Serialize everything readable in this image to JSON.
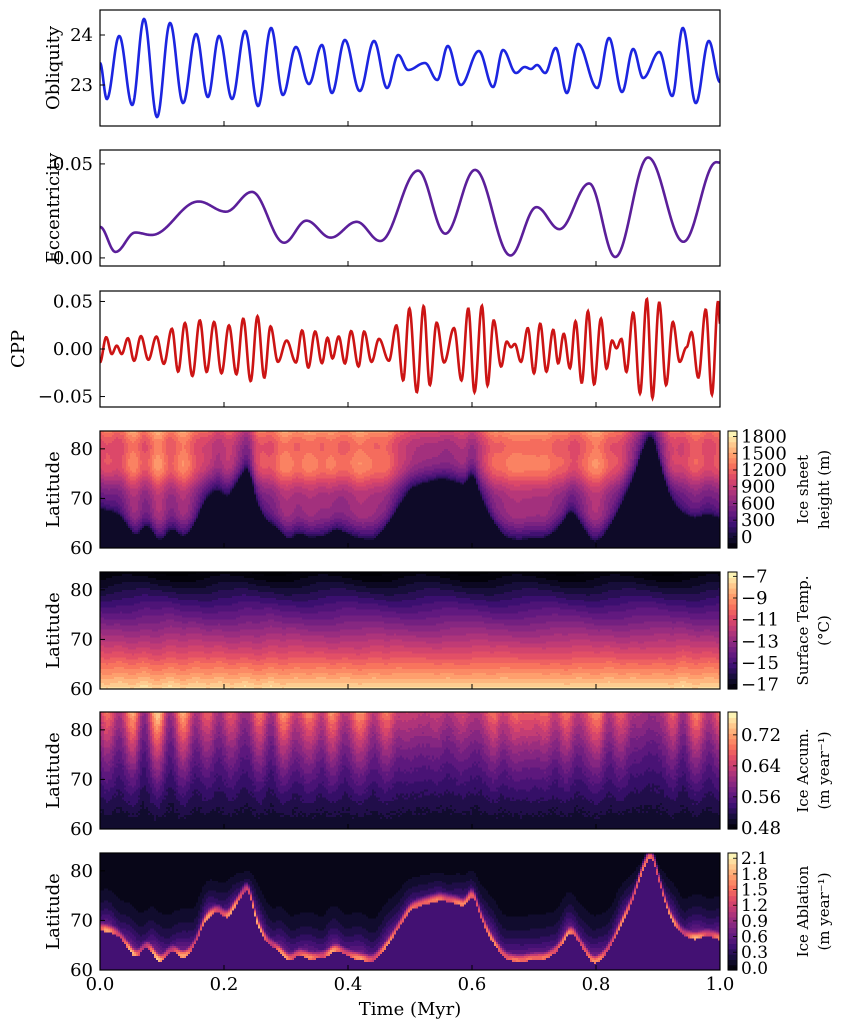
{
  "x_axis": {
    "label": "Time (Myr)",
    "ticks": [
      "0.0",
      "0.2",
      "0.4",
      "0.6",
      "0.8",
      "1.0"
    ],
    "tick_values": [
      0,
      0.2,
      0.4,
      0.6,
      0.8,
      1.0
    ],
    "xlim": [
      0,
      1
    ]
  },
  "chart_data": [
    {
      "type": "line",
      "ylabel": "Obliquity",
      "color": "#1c25e0",
      "ylim": [
        22.18,
        24.5
      ],
      "yticks": [
        "24",
        "23"
      ],
      "ytick_values": [
        24,
        23
      ],
      "extrema": [
        [
          0.0,
          23.44
        ],
        [
          0.011,
          22.72
        ],
        [
          0.031,
          23.98
        ],
        [
          0.052,
          22.6
        ],
        [
          0.071,
          24.32
        ],
        [
          0.092,
          22.36
        ],
        [
          0.113,
          24.24
        ],
        [
          0.134,
          22.64
        ],
        [
          0.155,
          24.02
        ],
        [
          0.174,
          22.76
        ],
        [
          0.192,
          23.98
        ],
        [
          0.213,
          22.72
        ],
        [
          0.234,
          24.08
        ],
        [
          0.255,
          22.58
        ],
        [
          0.276,
          24.14
        ],
        [
          0.295,
          22.8
        ],
        [
          0.316,
          23.76
        ],
        [
          0.337,
          23.02
        ],
        [
          0.358,
          23.8
        ],
        [
          0.374,
          22.84
        ],
        [
          0.395,
          23.9
        ],
        [
          0.419,
          22.88
        ],
        [
          0.442,
          23.88
        ],
        [
          0.463,
          22.94
        ],
        [
          0.481,
          23.6
        ],
        [
          0.497,
          23.3
        ],
        [
          0.524,
          23.44
        ],
        [
          0.544,
          23.1
        ],
        [
          0.561,
          23.78
        ],
        [
          0.582,
          23.0
        ],
        [
          0.611,
          23.68
        ],
        [
          0.634,
          22.96
        ],
        [
          0.65,
          23.7
        ],
        [
          0.671,
          23.24
        ],
        [
          0.685,
          23.36
        ],
        [
          0.695,
          23.32
        ],
        [
          0.705,
          23.4
        ],
        [
          0.718,
          23.24
        ],
        [
          0.735,
          23.74
        ],
        [
          0.753,
          22.84
        ],
        [
          0.771,
          23.82
        ],
        [
          0.802,
          22.94
        ],
        [
          0.821,
          23.94
        ],
        [
          0.842,
          22.86
        ],
        [
          0.86,
          23.72
        ],
        [
          0.876,
          23.14
        ],
        [
          0.902,
          23.66
        ],
        [
          0.923,
          22.78
        ],
        [
          0.94,
          24.14
        ],
        [
          0.961,
          22.64
        ],
        [
          0.982,
          23.88
        ],
        [
          1.0,
          23.06
        ]
      ]
    },
    {
      "type": "line",
      "ylabel": "Eccentricity",
      "color": "#5b1f9a",
      "ylim": [
        -0.0043,
        0.0574
      ],
      "yticks": [
        "0.05",
        "0.00"
      ],
      "ytick_values": [
        0.05,
        0.0
      ],
      "extrema": [
        [
          0.0,
          0.0165
        ],
        [
          0.025,
          0.0032
        ],
        [
          0.057,
          0.0135
        ],
        [
          0.083,
          0.0122
        ],
        [
          0.159,
          0.03
        ],
        [
          0.203,
          0.0246
        ],
        [
          0.245,
          0.0351
        ],
        [
          0.297,
          0.0081
        ],
        [
          0.333,
          0.0198
        ],
        [
          0.372,
          0.0108
        ],
        [
          0.414,
          0.0192
        ],
        [
          0.452,
          0.009
        ],
        [
          0.513,
          0.0464
        ],
        [
          0.557,
          0.0129
        ],
        [
          0.605,
          0.0468
        ],
        [
          0.662,
          0.0013
        ],
        [
          0.704,
          0.027
        ],
        [
          0.741,
          0.0153
        ],
        [
          0.789,
          0.0396
        ],
        [
          0.831,
          0.0005
        ],
        [
          0.884,
          0.0534
        ],
        [
          0.941,
          0.0086
        ],
        [
          0.994,
          0.0509
        ],
        [
          1.0,
          0.0507
        ]
      ]
    },
    {
      "type": "line",
      "ylabel": "CPP",
      "color": "#cc1414",
      "ylim": [
        -0.061,
        0.061
      ],
      "yticks": [
        "0.05",
        "0.00",
        "−0.05"
      ],
      "ytick_values": [
        0.05,
        0.0,
        -0.05
      ],
      "extrema": [
        [
          0.0,
          -0.014
        ],
        [
          0.01,
          0.0124
        ],
        [
          0.019,
          -0.0053
        ],
        [
          0.027,
          0.0035
        ],
        [
          0.035,
          -0.0053
        ],
        [
          0.045,
          0.0113
        ],
        [
          0.055,
          -0.0124
        ],
        [
          0.066,
          0.0135
        ],
        [
          0.078,
          -0.0113
        ],
        [
          0.091,
          0.0131
        ],
        [
          0.103,
          -0.0156
        ],
        [
          0.116,
          0.0213
        ],
        [
          0.126,
          -0.0238
        ],
        [
          0.137,
          0.0273
        ],
        [
          0.149,
          -0.0284
        ],
        [
          0.161,
          0.0301
        ],
        [
          0.172,
          -0.0241
        ],
        [
          0.184,
          0.0284
        ],
        [
          0.196,
          -0.0255
        ],
        [
          0.208,
          0.0248
        ],
        [
          0.22,
          -0.0266
        ],
        [
          0.231,
          0.0319
        ],
        [
          0.243,
          -0.0337
        ],
        [
          0.254,
          0.0344
        ],
        [
          0.265,
          -0.0301
        ],
        [
          0.275,
          0.0238
        ],
        [
          0.287,
          -0.0135
        ],
        [
          0.301,
          0.0089
        ],
        [
          0.316,
          -0.0142
        ],
        [
          0.326,
          0.0195
        ],
        [
          0.336,
          -0.0195
        ],
        [
          0.347,
          0.0184
        ],
        [
          0.358,
          -0.0149
        ],
        [
          0.367,
          0.0117
        ],
        [
          0.375,
          -0.0099
        ],
        [
          0.385,
          0.0131
        ],
        [
          0.395,
          -0.0152
        ],
        [
          0.405,
          0.0188
        ],
        [
          0.417,
          -0.0184
        ],
        [
          0.426,
          0.0184
        ],
        [
          0.438,
          -0.0135
        ],
        [
          0.45,
          0.0106
        ],
        [
          0.466,
          -0.0124
        ],
        [
          0.478,
          0.0248
        ],
        [
          0.489,
          -0.033
        ],
        [
          0.499,
          0.0426
        ],
        [
          0.511,
          -0.0454
        ],
        [
          0.522,
          0.045
        ],
        [
          0.532,
          -0.0379
        ],
        [
          0.543,
          0.0277
        ],
        [
          0.555,
          -0.0142
        ],
        [
          0.571,
          0.022
        ],
        [
          0.583,
          -0.033
        ],
        [
          0.594,
          0.0426
        ],
        [
          0.604,
          -0.0454
        ],
        [
          0.616,
          0.0454
        ],
        [
          0.625,
          -0.0383
        ],
        [
          0.635,
          0.0301
        ],
        [
          0.647,
          -0.0184
        ],
        [
          0.656,
          0.0078
        ],
        [
          0.663,
          0.0018
        ],
        [
          0.669,
          0.0053
        ],
        [
          0.679,
          -0.0135
        ],
        [
          0.69,
          0.022
        ],
        [
          0.7,
          -0.0255
        ],
        [
          0.71,
          0.0266
        ],
        [
          0.72,
          -0.0238
        ],
        [
          0.731,
          0.0202
        ],
        [
          0.739,
          -0.0152
        ],
        [
          0.748,
          0.016
        ],
        [
          0.758,
          -0.0202
        ],
        [
          0.767,
          0.0291
        ],
        [
          0.777,
          -0.0355
        ],
        [
          0.787,
          0.0397
        ],
        [
          0.797,
          -0.0372
        ],
        [
          0.808,
          0.0319
        ],
        [
          0.817,
          -0.0206
        ],
        [
          0.826,
          0.0089
        ],
        [
          0.833,
          0.0007
        ],
        [
          0.841,
          0.0106
        ],
        [
          0.849,
          -0.0241
        ],
        [
          0.86,
          0.0383
        ],
        [
          0.871,
          -0.0468
        ],
        [
          0.882,
          0.0525
        ],
        [
          0.891,
          -0.0514
        ],
        [
          0.902,
          0.0489
        ],
        [
          0.913,
          -0.0379
        ],
        [
          0.924,
          0.0284
        ],
        [
          0.935,
          -0.0135
        ],
        [
          0.946,
          0.0018
        ],
        [
          0.954,
          0.0177
        ],
        [
          0.965,
          -0.0301
        ],
        [
          0.977,
          0.0415
        ],
        [
          0.987,
          -0.0479
        ],
        [
          0.997,
          0.0504
        ],
        [
          1.0,
          0.0266
        ]
      ]
    },
    {
      "type": "heatmap",
      "ylabel": "Latitude",
      "colormap": "magma",
      "ylim": [
        60,
        83.6
      ],
      "yticks": [
        "80",
        "70",
        "60"
      ],
      "ytick_values": [
        80,
        70,
        60
      ],
      "colorbar": {
        "label_lines": [
          "Ice sheet",
          "height (m)"
        ],
        "ticks": [
          "1800",
          "1500",
          "1200",
          "900",
          "600",
          "300",
          "0"
        ],
        "tick_values": [
          1800,
          1500,
          1200,
          900,
          600,
          300,
          0
        ],
        "range": [
          -200,
          1900
        ]
      },
      "ice_sheet_southern_extent": [
        [
          0,
          68
        ],
        [
          0.03,
          67
        ],
        [
          0.058,
          62
        ],
        [
          0.075,
          65
        ],
        [
          0.097,
          61
        ],
        [
          0.115,
          64
        ],
        [
          0.135,
          62
        ],
        [
          0.15,
          64
        ],
        [
          0.17,
          70
        ],
        [
          0.19,
          72
        ],
        [
          0.205,
          70
        ],
        [
          0.225,
          74
        ],
        [
          0.24,
          77
        ],
        [
          0.25,
          70
        ],
        [
          0.265,
          66
        ],
        [
          0.285,
          64
        ],
        [
          0.305,
          61.5
        ],
        [
          0.32,
          63
        ],
        [
          0.34,
          62
        ],
        [
          0.365,
          62.5
        ],
        [
          0.38,
          64
        ],
        [
          0.395,
          63
        ],
        [
          0.415,
          62
        ],
        [
          0.44,
          61.5
        ],
        [
          0.46,
          64
        ],
        [
          0.48,
          68
        ],
        [
          0.5,
          72
        ],
        [
          0.52,
          73
        ],
        [
          0.55,
          74
        ],
        [
          0.57,
          73.5
        ],
        [
          0.59,
          72.5
        ],
        [
          0.6,
          76
        ],
        [
          0.615,
          70
        ],
        [
          0.635,
          65
        ],
        [
          0.655,
          62
        ],
        [
          0.675,
          61.5
        ],
        [
          0.7,
          62
        ],
        [
          0.72,
          62
        ],
        [
          0.74,
          64
        ],
        [
          0.76,
          68
        ],
        [
          0.78,
          64
        ],
        [
          0.795,
          61
        ],
        [
          0.81,
          62
        ],
        [
          0.83,
          66
        ],
        [
          0.845,
          70
        ],
        [
          0.86,
          74
        ],
        [
          0.875,
          80
        ],
        [
          0.89,
          83.6
        ],
        [
          0.905,
          76
        ],
        [
          0.92,
          70
        ],
        [
          0.94,
          67
        ],
        [
          0.96,
          66
        ],
        [
          0.98,
          67
        ],
        [
          1.0,
          66
        ]
      ]
    },
    {
      "type": "heatmap",
      "ylabel": "Latitude",
      "colormap": "magma",
      "ylim": [
        60,
        83.6
      ],
      "yticks": [
        "80",
        "70",
        "60"
      ],
      "ytick_values": [
        80,
        70,
        60
      ],
      "colorbar": {
        "label_lines": [
          "Surface Temp.",
          "(°C)"
        ],
        "ticks": [
          "−7",
          "−9",
          "−11",
          "−13",
          "−15",
          "−17"
        ],
        "tick_values": [
          -7,
          -9,
          -11,
          -13,
          -15,
          -17
        ],
        "range": [
          -17.4,
          -6.6
        ]
      }
    },
    {
      "type": "heatmap",
      "ylabel": "Latitude",
      "colormap": "magma",
      "ylim": [
        60,
        83.6
      ],
      "yticks": [
        "80",
        "70",
        "60"
      ],
      "ytick_values": [
        80,
        70,
        60
      ],
      "colorbar": {
        "label_lines": [
          "Ice Accum.",
          "(m year⁻¹)"
        ],
        "ticks": [
          "0.72",
          "0.64",
          "0.56",
          "0.48"
        ],
        "tick_values": [
          0.72,
          0.64,
          0.56,
          0.48
        ],
        "range": [
          0.477,
          0.779
        ]
      }
    },
    {
      "type": "heatmap",
      "ylabel": "Latitude",
      "colormap": "magma",
      "ylim": [
        60,
        83.6
      ],
      "yticks": [
        "80",
        "70",
        "60"
      ],
      "ytick_values": [
        80,
        70,
        60
      ],
      "colorbar": {
        "label_lines": [
          "Ice Ablation",
          "(m year⁻¹)"
        ],
        "ticks": [
          "2.1",
          "1.8",
          "1.5",
          "1.2",
          "0.9",
          "0.6",
          "0.3",
          "0.0"
        ],
        "tick_values": [
          2.1,
          1.8,
          1.5,
          1.2,
          0.9,
          0.6,
          0.3,
          0.0
        ],
        "range": [
          -0.04,
          2.2
        ]
      }
    }
  ]
}
